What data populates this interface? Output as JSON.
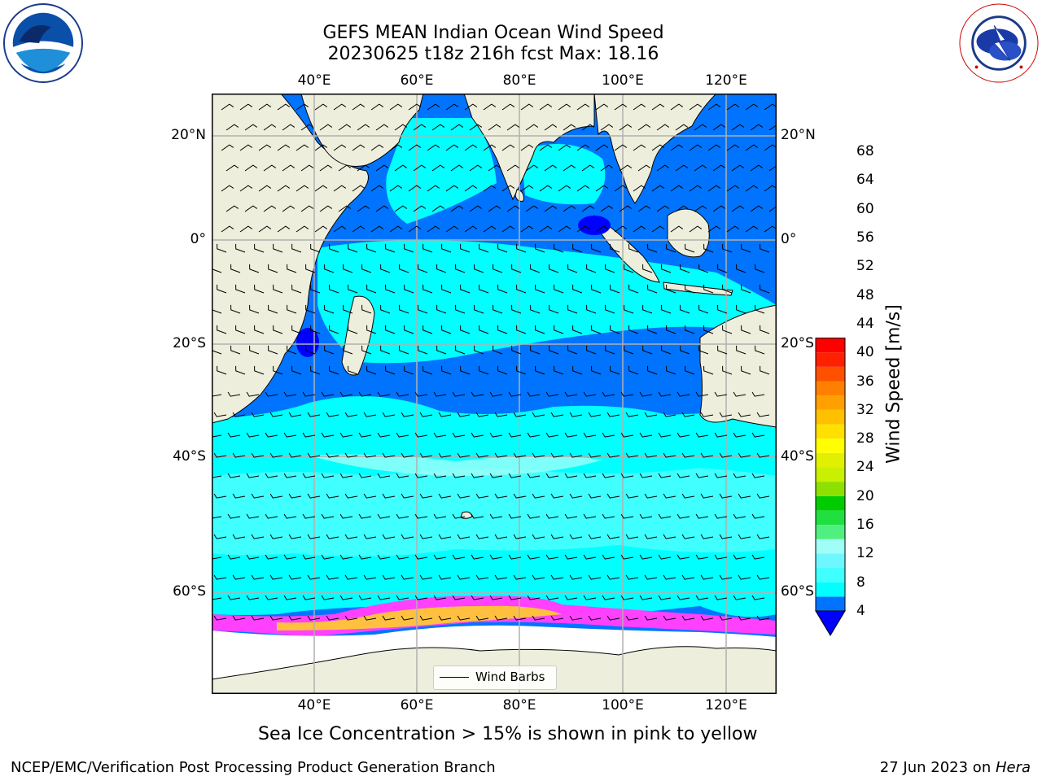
{
  "title_line1": "GEFS MEAN Indian Ocean Wind Speed",
  "title_line2": "20230625 t18z 216h fcst   Max: 18.16",
  "lon_ticks": [
    "40°E",
    "60°E",
    "80°E",
    "100°E",
    "120°E"
  ],
  "lat_ticks": [
    "20°N",
    "0°",
    "20°S",
    "40°S",
    "60°S"
  ],
  "legend": {
    "label": "Wind Barbs"
  },
  "colorbar": {
    "label": "Wind Speed [m/s]",
    "ticks": [
      "4",
      "8",
      "12",
      "16",
      "20",
      "24",
      "28",
      "32",
      "36",
      "40",
      "44",
      "48",
      "52",
      "56",
      "60",
      "64",
      "68"
    ],
    "colors": [
      "#0000ff",
      "#0074ff",
      "#00ffff",
      "#40ffff",
      "#6ff7ff",
      "#9ffff7",
      "#50f080",
      "#20e040",
      "#00cc00",
      "#8ee000",
      "#c8f000",
      "#e0f000",
      "#ffff00",
      "#ffe000",
      "#ffc000",
      "#ffa000",
      "#ff8000",
      "#ff5000",
      "#ff2000",
      "#ff0000"
    ]
  },
  "caption": "Sea Ice Concentration > 15% is shown in pink to yellow",
  "footer_left": "NCEP/EMC/Verification Post Processing Product Generation Branch",
  "footer_right_date": "27 Jun 2023 on ",
  "footer_right_host": "Hera",
  "map_colors": {
    "land": "#eeeedc",
    "ocean_fill": "#00ffff",
    "wind_4_8": "#0074ff",
    "wind_12_16": "#40ffff",
    "wind_16_20": "#9ffff7",
    "wind_lt_4": "#0000ff",
    "sea_ice": [
      "#ff40ff",
      "#ff80c0",
      "#ffc040",
      "#ffe060"
    ],
    "grid": "#b0b0b0"
  },
  "logos": [
    "noaa-logo",
    "nws-logo"
  ]
}
